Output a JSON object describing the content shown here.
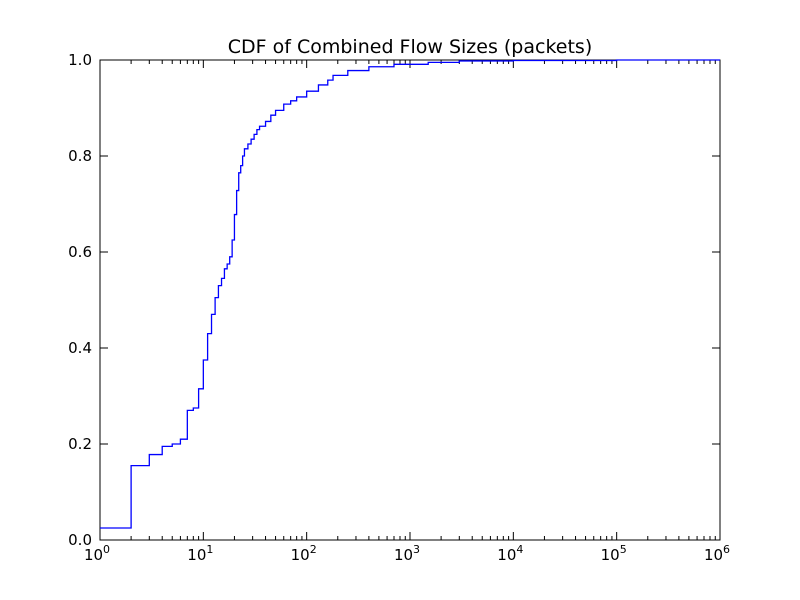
{
  "chart_data": {
    "type": "line",
    "title": "CDF of Combined Flow Sizes (packets)",
    "xlabel": "",
    "ylabel": "",
    "xscale": "log",
    "xlim": [
      1,
      1000000
    ],
    "ylim": [
      0.0,
      1.0
    ],
    "grid": false,
    "legend": "none",
    "x_tick_labels": [
      {
        "base": "10",
        "exp": "0"
      },
      {
        "base": "10",
        "exp": "1"
      },
      {
        "base": "10",
        "exp": "2"
      },
      {
        "base": "10",
        "exp": "3"
      },
      {
        "base": "10",
        "exp": "4"
      },
      {
        "base": "10",
        "exp": "5"
      },
      {
        "base": "10",
        "exp": "6"
      }
    ],
    "y_tick_labels": [
      "0.0",
      "0.2",
      "0.4",
      "0.6",
      "0.8",
      "1.0"
    ],
    "series": [
      {
        "color": "#0000ff",
        "step": true,
        "points": [
          [
            1,
            0.025
          ],
          [
            2,
            0.155
          ],
          [
            3,
            0.178
          ],
          [
            4,
            0.195
          ],
          [
            5,
            0.2
          ],
          [
            6,
            0.21
          ],
          [
            7,
            0.27
          ],
          [
            8,
            0.275
          ],
          [
            9,
            0.315
          ],
          [
            10,
            0.375
          ],
          [
            11,
            0.43
          ],
          [
            12,
            0.47
          ],
          [
            13,
            0.505
          ],
          [
            14,
            0.53
          ],
          [
            15,
            0.545
          ],
          [
            16,
            0.565
          ],
          [
            17,
            0.575
          ],
          [
            18,
            0.59
          ],
          [
            19,
            0.625
          ],
          [
            20,
            0.678
          ],
          [
            21,
            0.728
          ],
          [
            22,
            0.765
          ],
          [
            23,
            0.78
          ],
          [
            24,
            0.8
          ],
          [
            25,
            0.815
          ],
          [
            27,
            0.825
          ],
          [
            29,
            0.835
          ],
          [
            31,
            0.845
          ],
          [
            33,
            0.855
          ],
          [
            35,
            0.862
          ],
          [
            40,
            0.872
          ],
          [
            45,
            0.885
          ],
          [
            50,
            0.895
          ],
          [
            60,
            0.908
          ],
          [
            70,
            0.915
          ],
          [
            80,
            0.923
          ],
          [
            100,
            0.935
          ],
          [
            130,
            0.948
          ],
          [
            160,
            0.958
          ],
          [
            180,
            0.968
          ],
          [
            250,
            0.978
          ],
          [
            400,
            0.986
          ],
          [
            700,
            0.991
          ],
          [
            1500,
            0.995
          ],
          [
            3000,
            0.998
          ],
          [
            10000,
            0.999
          ],
          [
            100000,
            1.0
          ],
          [
            1000000,
            1.0
          ]
        ]
      }
    ]
  }
}
